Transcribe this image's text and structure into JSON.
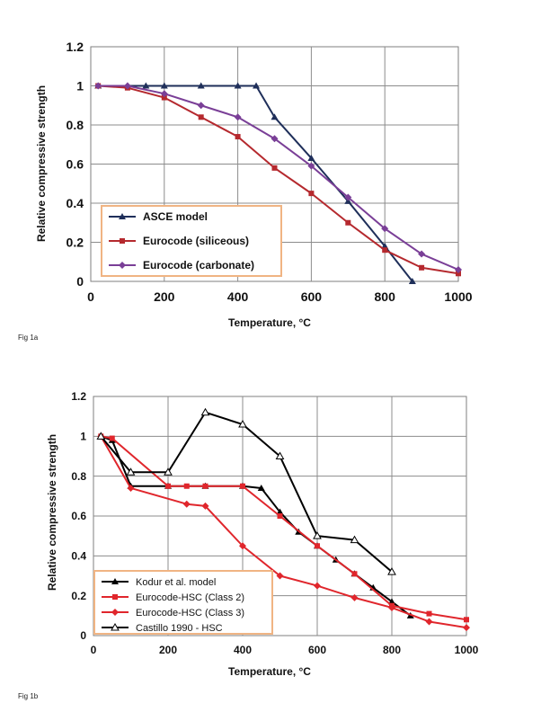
{
  "figure_labels": [
    "Fig 1a",
    "Fig 1b"
  ],
  "chart_data": [
    {
      "type": "line",
      "title": "",
      "xlabel": "Temperature, °C",
      "ylabel": "Relative compressive strength",
      "xlim": [
        0,
        1000
      ],
      "ylim": [
        0,
        1.2
      ],
      "xticks": [
        "0",
        "200",
        "400",
        "600",
        "800",
        "1000"
      ],
      "yticks": [
        "0",
        "0.2",
        "0.4",
        "0.6",
        "0.8",
        "1",
        "1.2"
      ],
      "grid": true,
      "legend_position": "bottom-left",
      "series": [
        {
          "name": "ASCE model",
          "color": "#1f2f5a",
          "marker": "triangle-filled",
          "points": [
            [
              20,
              1.0
            ],
            [
              100,
              1.0
            ],
            [
              150,
              1.0
            ],
            [
              200,
              1.0
            ],
            [
              300,
              1.0
            ],
            [
              400,
              1.0
            ],
            [
              450,
              1.0
            ],
            [
              500,
              0.84
            ],
            [
              600,
              0.63
            ],
            [
              700,
              0.41
            ],
            [
              800,
              0.18
            ],
            [
              875,
              0.0
            ]
          ]
        },
        {
          "name": "Eurocode (siliceous)",
          "color": "#b5292e",
          "marker": "square",
          "points": [
            [
              20,
              1.0
            ],
            [
              100,
              0.99
            ],
            [
              200,
              0.94
            ],
            [
              300,
              0.84
            ],
            [
              400,
              0.74
            ],
            [
              500,
              0.58
            ],
            [
              600,
              0.45
            ],
            [
              700,
              0.3
            ],
            [
              800,
              0.16
            ],
            [
              900,
              0.07
            ],
            [
              1000,
              0.04
            ]
          ]
        },
        {
          "name": "Eurocode (carbonate)",
          "color": "#7a3f97",
          "marker": "diamond",
          "points": [
            [
              20,
              1.0
            ],
            [
              100,
              1.0
            ],
            [
              200,
              0.96
            ],
            [
              300,
              0.9
            ],
            [
              400,
              0.84
            ],
            [
              500,
              0.73
            ],
            [
              600,
              0.59
            ],
            [
              700,
              0.43
            ],
            [
              800,
              0.27
            ],
            [
              900,
              0.14
            ],
            [
              1000,
              0.06
            ]
          ]
        }
      ]
    },
    {
      "type": "line",
      "title": "",
      "xlabel": "Temperature, °C",
      "ylabel": "Relative compressive strength",
      "xlim": [
        0,
        1000
      ],
      "ylim": [
        0,
        1.2
      ],
      "xticks": [
        "0",
        "200",
        "400",
        "600",
        "800",
        "1000"
      ],
      "yticks": [
        "0",
        "0.2",
        "0.4",
        "0.6",
        "0.8",
        "1",
        "1.2"
      ],
      "grid": true,
      "legend_position": "bottom-left",
      "series": [
        {
          "name": "Kodur et al. model",
          "color": "#000000",
          "marker": "triangle-filled",
          "points": [
            [
              20,
              1.0
            ],
            [
              50,
              0.98
            ],
            [
              100,
              0.75
            ],
            [
              200,
              0.75
            ],
            [
              300,
              0.75
            ],
            [
              400,
              0.75
            ],
            [
              450,
              0.74
            ],
            [
              500,
              0.62
            ],
            [
              550,
              0.52
            ],
            [
              600,
              0.45
            ],
            [
              650,
              0.38
            ],
            [
              700,
              0.31
            ],
            [
              750,
              0.24
            ],
            [
              800,
              0.17
            ],
            [
              850,
              0.1
            ]
          ]
        },
        {
          "name": "Eurocode-HSC (Class 2)",
          "color": "#e0262c",
          "marker": "square",
          "points": [
            [
              20,
              1.0
            ],
            [
              50,
              0.99
            ],
            [
              200,
              0.75
            ],
            [
              250,
              0.75
            ],
            [
              300,
              0.75
            ],
            [
              400,
              0.75
            ],
            [
              500,
              0.6
            ],
            [
              600,
              0.45
            ],
            [
              700,
              0.31
            ],
            [
              800,
              0.15
            ],
            [
              900,
              0.11
            ],
            [
              1000,
              0.08
            ]
          ]
        },
        {
          "name": "Eurocode-HSC (Class 3)",
          "color": "#e0262c",
          "marker": "diamond",
          "points": [
            [
              20,
              1.0
            ],
            [
              100,
              0.74
            ],
            [
              250,
              0.66
            ],
            [
              300,
              0.65
            ],
            [
              400,
              0.45
            ],
            [
              500,
              0.3
            ],
            [
              600,
              0.25
            ],
            [
              700,
              0.19
            ],
            [
              800,
              0.14
            ],
            [
              900,
              0.07
            ],
            [
              1000,
              0.04
            ]
          ]
        },
        {
          "name": "Castillo 1990 - HSC",
          "color": "#000000",
          "marker": "triangle-open",
          "points": [
            [
              20,
              1.0
            ],
            [
              100,
              0.82
            ],
            [
              200,
              0.82
            ],
            [
              300,
              1.12
            ],
            [
              400,
              1.06
            ],
            [
              500,
              0.9
            ],
            [
              600,
              0.5
            ],
            [
              700,
              0.48
            ],
            [
              800,
              0.32
            ]
          ]
        }
      ]
    }
  ]
}
